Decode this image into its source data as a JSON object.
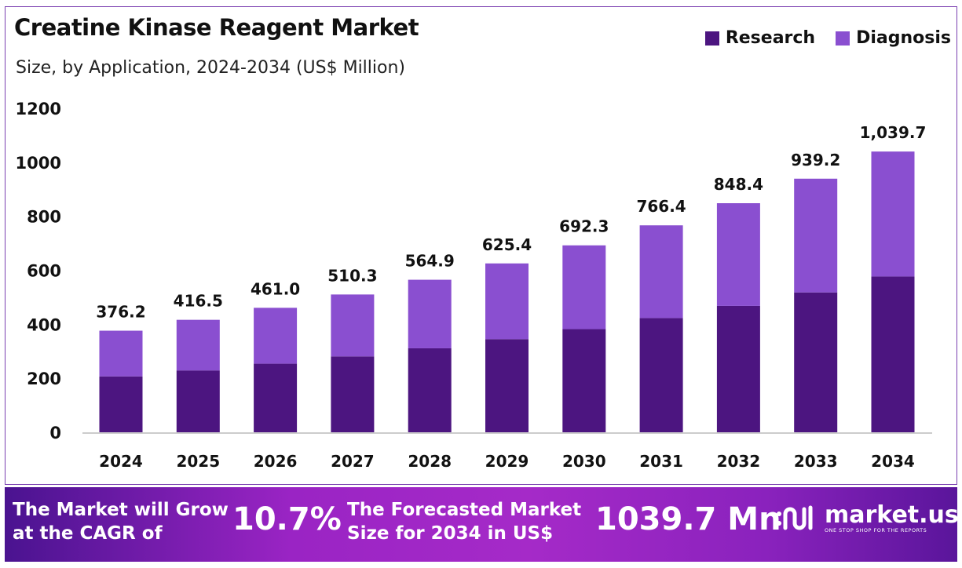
{
  "chart_data": {
    "type": "bar",
    "stacked": true,
    "title": "Creatine Kinase Reagent Market",
    "subtitle": "Size, by Application, 2024-2034 (US$ Million)",
    "categories": [
      "2024",
      "2025",
      "2026",
      "2027",
      "2028",
      "2029",
      "2030",
      "2031",
      "2032",
      "2033",
      "2034"
    ],
    "series": [
      {
        "name": "Research",
        "color": "#4c1580",
        "values": [
          207,
          229,
          254,
          281,
          311,
          345,
          382,
          423,
          468,
          518,
          577
        ]
      },
      {
        "name": "Diagnosis",
        "color": "#8a4fd0",
        "values": [
          169.2,
          187.5,
          207.0,
          229.3,
          253.9,
          280.4,
          310.3,
          343.4,
          380.4,
          421.2,
          462.7
        ]
      }
    ],
    "totals_labels": [
      "376.2",
      "416.5",
      "461.0",
      "510.3",
      "564.9",
      "625.4",
      "692.3",
      "766.4",
      "848.4",
      "939.2",
      "1,039.7"
    ],
    "yticks": [
      0,
      200,
      400,
      600,
      800,
      1000,
      1200
    ],
    "ylim": [
      0,
      1200
    ],
    "grid": false,
    "legend_position": "top-right"
  },
  "footer": {
    "cagr_text_line1": "The Market will Grow",
    "cagr_text_line2": "at the CAGR of",
    "cagr_value": "10.7%",
    "forecast_text_line1": "The Forecasted Market",
    "forecast_text_line2": "Size for 2034 in US$",
    "forecast_value": "1039.7 Mn",
    "logo_name": "market.us",
    "logo_tagline": "ONE STOP SHOP FOR THE REPORTS"
  }
}
